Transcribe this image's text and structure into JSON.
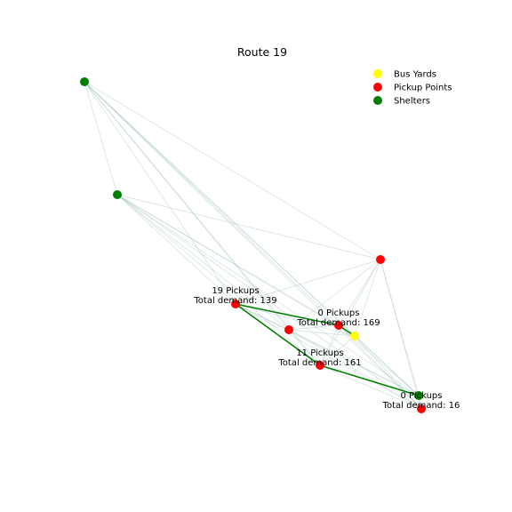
{
  "title": "Route 19",
  "legend": [
    {
      "label": "Bus Yards",
      "color": "#ffff00"
    },
    {
      "label": "Pickup Points",
      "color": "#ff0000"
    },
    {
      "label": "Shelters",
      "color": "#008000"
    }
  ],
  "colors": {
    "edge": "#a9c4c4",
    "route": "#008000"
  },
  "nodes": [
    {
      "id": "shelter-a",
      "kind": "shelter"
    },
    {
      "id": "shelter-b",
      "kind": "shelter"
    },
    {
      "id": "shelter-c",
      "kind": "shelter"
    },
    {
      "id": "pickup-a",
      "kind": "pickup"
    },
    {
      "id": "pickup-b",
      "kind": "pickup"
    },
    {
      "id": "pickup-c",
      "kind": "pickup"
    },
    {
      "id": "pickup-d",
      "kind": "pickup"
    },
    {
      "id": "pickup-e",
      "kind": "pickup"
    },
    {
      "id": "pickup-f",
      "kind": "pickup"
    },
    {
      "id": "yard-a",
      "kind": "yard"
    }
  ],
  "annotations": [
    {
      "node": "pickup-c",
      "line1": "19 Pickups",
      "line2": "Total demand: 139"
    },
    {
      "node": "pickup-b",
      "line1": "0 Pickups",
      "line2": "Total demand: 169"
    },
    {
      "node": "pickup-e",
      "line1": "11 Pickups",
      "line2": "Total demand: 161"
    },
    {
      "node": "pickup-f",
      "line1": "0 Pickups",
      "line2": "Total demand: 16"
    }
  ],
  "route": [
    "yard-a",
    "pickup-b",
    "pickup-c",
    "pickup-e",
    "shelter-c"
  ]
}
